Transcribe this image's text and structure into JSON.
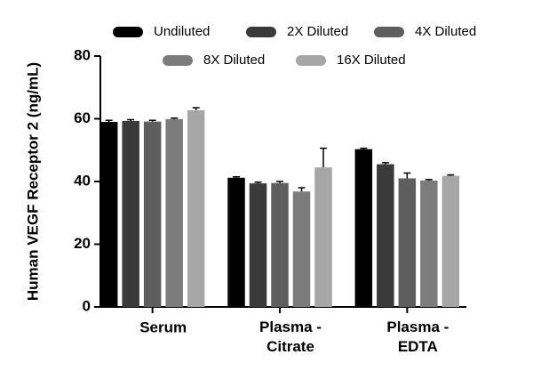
{
  "chart_data": {
    "type": "bar",
    "y_label": "Human VEGF Receptor 2 (ng/mL)",
    "categories": [
      "Serum",
      "Plasma -\nCitrate",
      "Plasma -\nEDTA"
    ],
    "series": [
      {
        "name": "Undiluted",
        "color": "#000000",
        "values": [
          59.0,
          41.2,
          50.3
        ],
        "errors": [
          0.5,
          0.3,
          0.3
        ]
      },
      {
        "name": "2X Diluted",
        "color": "#3a3a3a",
        "values": [
          59.3,
          39.4,
          45.5
        ],
        "errors": [
          0.4,
          0.4,
          0.5
        ]
      },
      {
        "name": "4X Diluted",
        "color": "#5e5e5e",
        "values": [
          59.1,
          39.5,
          41.0
        ],
        "errors": [
          0.4,
          0.5,
          1.7
        ]
      },
      {
        "name": "8X Diluted",
        "color": "#7c7c7c",
        "values": [
          59.9,
          36.8,
          40.3
        ],
        "errors": [
          0.3,
          1.2,
          0.3
        ]
      },
      {
        "name": "16X Diluted",
        "color": "#a6a6a6",
        "values": [
          62.7,
          44.5,
          41.8
        ],
        "errors": [
          0.8,
          6.1,
          0.3
        ]
      }
    ],
    "ylim": [
      0,
      80
    ],
    "yticks": [
      0,
      20,
      40,
      60,
      80
    ]
  }
}
